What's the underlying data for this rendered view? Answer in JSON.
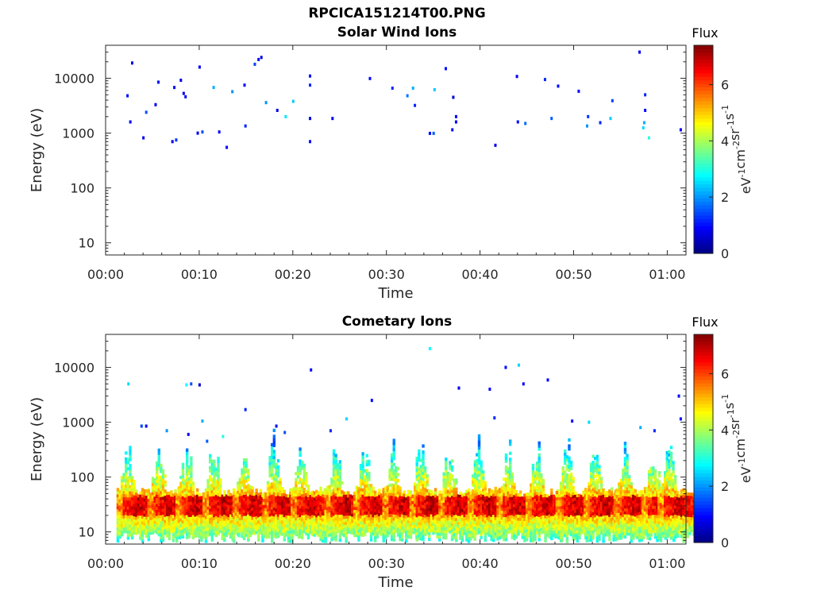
{
  "figure": {
    "title": "RPCICA151214T00.PNG",
    "colorbar": {
      "label": "Flux",
      "unit_base": "eV",
      "unit_parts": [
        {
          "t": "eV",
          "sup": "-1"
        },
        {
          "t": "cm",
          "sup": "-2"
        },
        {
          "t": "sr",
          "sup": "-1"
        },
        {
          "t": "s",
          "sup": "-1"
        }
      ],
      "range": [
        0,
        7.4
      ],
      "ticks": [
        0,
        2,
        4,
        6
      ],
      "tick_labels": [
        "0",
        "2",
        "4",
        "6"
      ],
      "colormap": "jet"
    }
  },
  "chart_data": [
    {
      "type": "heatmap",
      "title": "Solar Wind Ions",
      "xlabel": "Time",
      "ylabel": "Energy (eV)",
      "x_range_min": [
        0,
        62
      ],
      "y_scale": "log",
      "y_range": [
        6,
        40000
      ],
      "x_ticks": [
        0,
        10,
        20,
        30,
        40,
        50,
        60
      ],
      "x_tick_labels": [
        "00:00",
        "00:10",
        "00:20",
        "00:30",
        "00:40",
        "00:50",
        "01:00"
      ],
      "y_ticks": [
        10,
        100,
        1000,
        10000
      ],
      "y_tick_labels": [
        "10",
        "100",
        "1000",
        "10000"
      ],
      "points": [
        [
          2.3,
          4800,
          1
        ],
        [
          2.6,
          1600,
          1
        ],
        [
          2.8,
          19000,
          0.8
        ],
        [
          4.0,
          820,
          0.8
        ],
        [
          4.3,
          2400,
          1.5
        ],
        [
          5.3,
          3300,
          0.8
        ],
        [
          5.6,
          8500,
          1
        ],
        [
          7.1,
          700,
          0.8
        ],
        [
          7.5,
          750,
          1.3
        ],
        [
          7.3,
          6800,
          1
        ],
        [
          8.0,
          9200,
          0.7
        ],
        [
          8.3,
          5300,
          0.8
        ],
        [
          8.5,
          4600,
          1
        ],
        [
          9.8,
          1000,
          0.8
        ],
        [
          10.0,
          16000,
          0.8
        ],
        [
          10.3,
          1050,
          1.5
        ],
        [
          11.5,
          6800,
          2.2
        ],
        [
          12.1,
          1050,
          1
        ],
        [
          12.9,
          550,
          1
        ],
        [
          13.5,
          5700,
          2
        ],
        [
          14.8,
          7500,
          1
        ],
        [
          14.9,
          1350,
          1.2
        ],
        [
          15.9,
          18000,
          1.4
        ],
        [
          16.3,
          22000,
          1
        ],
        [
          16.6,
          24000,
          0.7
        ],
        [
          17.1,
          3600,
          2
        ],
        [
          18.3,
          2600,
          0.8
        ],
        [
          19.2,
          2000,
          2.6
        ],
        [
          20.0,
          3800,
          2.4
        ],
        [
          21.8,
          11000,
          1
        ],
        [
          21.8,
          7500,
          1.2
        ],
        [
          21.8,
          1850,
          0.8
        ],
        [
          21.8,
          700,
          1
        ],
        [
          24.2,
          1850,
          0.8
        ],
        [
          28.2,
          9900,
          1
        ],
        [
          30.6,
          6600,
          1.2
        ],
        [
          32.2,
          4800,
          1.8
        ],
        [
          32.8,
          6600,
          2.2
        ],
        [
          33.0,
          3200,
          1.2
        ],
        [
          34.6,
          990,
          1
        ],
        [
          35.0,
          990,
          1.6
        ],
        [
          35.1,
          6200,
          2.4
        ],
        [
          36.3,
          15000,
          1
        ],
        [
          37.1,
          4500,
          0.7
        ],
        [
          37.0,
          1150,
          1
        ],
        [
          37.4,
          2000,
          1
        ],
        [
          37.4,
          1600,
          0.9
        ],
        [
          41.6,
          600,
          0.8
        ],
        [
          43.9,
          10800,
          0.9
        ],
        [
          44.0,
          1600,
          1
        ],
        [
          44.8,
          1500,
          1.7
        ],
        [
          46.9,
          9500,
          1.2
        ],
        [
          47.6,
          1850,
          1.6
        ],
        [
          48.3,
          7200,
          1
        ],
        [
          50.5,
          5800,
          1
        ],
        [
          51.5,
          2000,
          1.3
        ],
        [
          51.4,
          1350,
          2
        ],
        [
          52.8,
          1550,
          1.2
        ],
        [
          53.9,
          1850,
          2.4
        ],
        [
          54.1,
          3900,
          1.4
        ],
        [
          57.0,
          30000,
          0.8
        ],
        [
          57.6,
          5000,
          1.2
        ],
        [
          57.6,
          2600,
          0.9
        ],
        [
          57.5,
          1550,
          2.2
        ],
        [
          57.4,
          1250,
          2.5
        ],
        [
          58.0,
          820,
          3
        ],
        [
          61.4,
          1150,
          0.8
        ]
      ]
    },
    {
      "type": "heatmap",
      "title": "Cometary Ions",
      "xlabel": "Time",
      "ylabel": "Energy (eV)",
      "x_range_min": [
        0,
        62
      ],
      "y_scale": "log",
      "y_range": [
        6,
        40000
      ],
      "x_ticks": [
        0,
        10,
        20,
        30,
        40,
        50,
        60
      ],
      "x_tick_labels": [
        "00:00",
        "00:10",
        "00:20",
        "00:30",
        "00:40",
        "00:50",
        "01:00"
      ],
      "y_ticks": [
        10,
        100,
        1000,
        10000
      ],
      "y_tick_labels": [
        "10",
        "100",
        "1000",
        "10000"
      ],
      "band_centers_min": [
        3.5,
        6.8,
        9.8,
        12.7,
        15.9,
        19.1,
        22.1,
        25.7,
        28.8,
        31.9,
        34.8,
        37.9,
        41.0,
        44.1,
        47.2,
        50.4,
        53.4,
        56.6,
        59.6,
        61.3
      ],
      "band_peak_energy_eV": 30,
      "points": [
        [
          2.4,
          5000,
          2.5
        ],
        [
          3.8,
          850,
          1.4
        ],
        [
          4.3,
          850,
          1
        ],
        [
          6.5,
          700,
          2
        ],
        [
          8.6,
          4800,
          2.8
        ],
        [
          9.1,
          5000,
          1.5
        ],
        [
          10.0,
          4800,
          0.5
        ],
        [
          8.8,
          600,
          1
        ],
        [
          10.3,
          1050,
          2.2
        ],
        [
          10.8,
          450,
          1.6
        ],
        [
          12.5,
          550,
          3
        ],
        [
          14.9,
          1700,
          1.2
        ],
        [
          18.2,
          850,
          1
        ],
        [
          19.1,
          650,
          1.5
        ],
        [
          21.9,
          9000,
          1
        ],
        [
          24.0,
          700,
          1.2
        ],
        [
          25.7,
          1150,
          2.5
        ],
        [
          28.4,
          2500,
          1
        ],
        [
          34.6,
          22000,
          2.8
        ],
        [
          37.7,
          4200,
          0.8
        ],
        [
          41.0,
          4000,
          1
        ],
        [
          41.5,
          1200,
          1.2
        ],
        [
          42.7,
          10000,
          1
        ],
        [
          44.1,
          11000,
          2.5
        ],
        [
          44.6,
          5000,
          1
        ],
        [
          47.2,
          5900,
          1
        ],
        [
          49.8,
          1050,
          1
        ],
        [
          51.6,
          1000,
          2.5
        ],
        [
          57.1,
          800,
          2.2
        ],
        [
          58.6,
          700,
          1.2
        ],
        [
          61.2,
          3000,
          1
        ],
        [
          61.4,
          1150,
          1
        ]
      ]
    }
  ]
}
